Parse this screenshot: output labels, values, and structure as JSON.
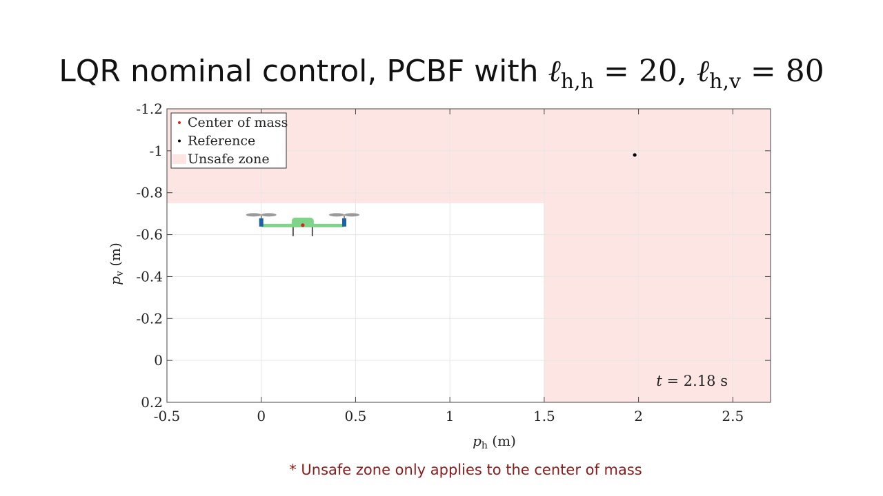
{
  "title": {
    "prefix": "LQR nominal control, PCBF with ",
    "ell": "ℓ",
    "sub1": "h,h",
    "eq1": " = 20,  ",
    "sub2": "h,v",
    "eq2": " = 80"
  },
  "footnote": "* Unsafe zone only applies to the center of mass",
  "colors": {
    "unsafe": "#fde5e3",
    "center_of_mass": "#e02020",
    "reference": "#000000",
    "drone_body": "#7fd48a",
    "drone_motor": "#1f5fa8",
    "drone_rotor": "#9a9a9a",
    "drone_legs": "#555555"
  },
  "chart_data": {
    "type": "scatter",
    "xlabel": "p",
    "xlabel_sub": "h",
    "xlabel_unit": "(m)",
    "ylabel": "p",
    "ylabel_sub": "v",
    "ylabel_unit": "(m)",
    "xlim": [
      -0.5,
      2.7
    ],
    "ylim": [
      -1.2,
      0.2
    ],
    "y_reversed": true,
    "x_ticks": [
      -0.5,
      0,
      0.5,
      1,
      1.5,
      2,
      2.5
    ],
    "x_tick_labels": [
      "-0.5",
      "0",
      "0.5",
      "1",
      "1.5",
      "2",
      "2.5"
    ],
    "y_ticks": [
      -1.2,
      -1,
      -0.8,
      -0.6,
      -0.4,
      -0.2,
      0,
      0.2
    ],
    "y_tick_labels": [
      "-1.2",
      "-1",
      "-0.8",
      "-0.6",
      "-0.4",
      "-0.2",
      "0",
      "0.2"
    ],
    "grid": true,
    "legend_position": "top-left",
    "legend": [
      {
        "name": "Center of mass",
        "marker": "dot",
        "color": "#e02020"
      },
      {
        "name": "Reference",
        "marker": "dot",
        "color": "#000000"
      },
      {
        "name": "Unsafe zone",
        "marker": "patch",
        "color": "#fde5e3"
      }
    ],
    "unsafe_zones": [
      {
        "x": [
          -0.5,
          2.7
        ],
        "y": [
          -1.2,
          -0.75
        ]
      },
      {
        "x": [
          1.5,
          2.7
        ],
        "y": [
          -1.2,
          0.2
        ]
      }
    ],
    "center_of_mass": {
      "x": 0.22,
      "y": -0.645
    },
    "reference": {
      "x": 1.98,
      "y": -0.98
    },
    "drone": {
      "center_x": 0.22,
      "center_y": -0.645,
      "arm_half_span": 0.22
    },
    "time_label": {
      "var": "t",
      "text": " = 2.18 s"
    }
  }
}
